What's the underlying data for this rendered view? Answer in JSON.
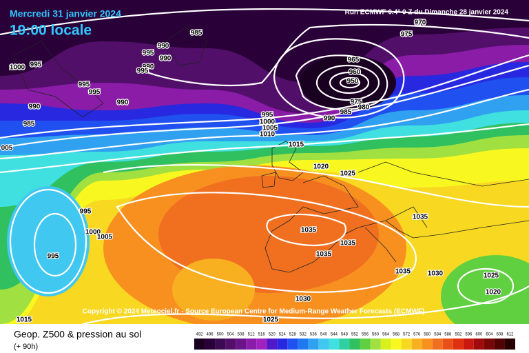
{
  "header": {
    "date": "Mercredi 31 janvier 2024",
    "time": "19:00 locale",
    "run": "Run ECMWF 0.4° 0 Z du Dimanche 28 janvier 2024"
  },
  "copyright": "Copyright © 2024 Meteociel.fr - Source European Centre for Medium-Range Weather Forecasts (ECMWF)",
  "footer": {
    "title": "Geop. Z500 & pression au sol",
    "lead": "(+ 90h)"
  },
  "isobar_labels": [
    985,
    970,
    975,
    990,
    995,
    990,
    990,
    995,
    1000,
    995,
    995,
    995,
    990,
    990,
    985,
    965,
    960,
    950,
    975,
    980,
    985,
    990,
    995,
    1000,
    1005,
    1010,
    1015,
    "005",
    1020,
    1025,
    995,
    1000,
    1005,
    995,
    1035,
    1035,
    1035,
    1035,
    1035,
    1030,
    1025,
    1020,
    1030,
    1025,
    1015
  ],
  "colorbar": {
    "ticks": [
      492,
      496,
      500,
      504,
      508,
      512,
      516,
      520,
      524,
      528,
      532,
      536,
      540,
      544,
      548,
      552,
      556,
      560,
      564,
      568,
      572,
      576,
      580,
      584,
      588,
      592,
      596,
      600,
      604,
      608,
      612
    ],
    "colors": [
      "#1a0020",
      "#2a0038",
      "#3c0a50",
      "#520f6a",
      "#6a1488",
      "#8a1ca8",
      "#a020c0",
      "#5018c8",
      "#2828e0",
      "#2050f0",
      "#2078f0",
      "#30a0f0",
      "#40c8f0",
      "#40e0e0",
      "#30d0a0",
      "#30c060",
      "#60d040",
      "#a0e040",
      "#d8f020",
      "#f8f820",
      "#f8d820",
      "#f8b020",
      "#f89020",
      "#f07020",
      "#e85018",
      "#e03010",
      "#c81810",
      "#a00c0c",
      "#780808",
      "#500404",
      "#280000"
    ]
  }
}
